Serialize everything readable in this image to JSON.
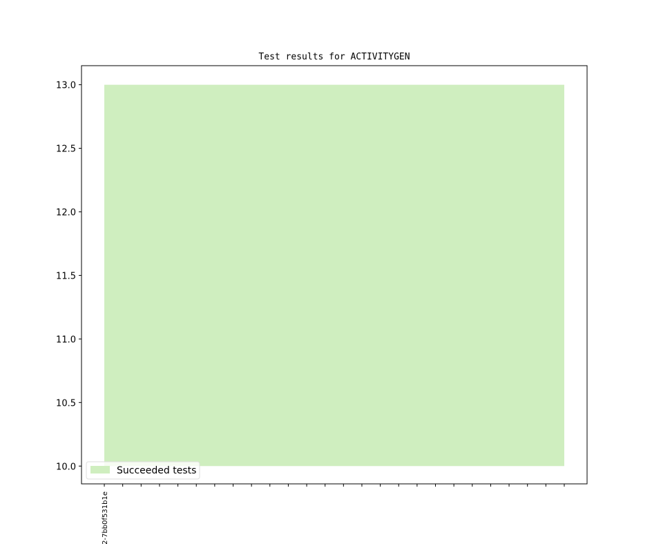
{
  "chart_data": {
    "type": "area",
    "title": "Test results for ACTIVITYGEN",
    "xlabel": "",
    "ylabel": "",
    "x_tick_labels": [
      "2-7bb0f531b1e",
      "",
      "",
      "",
      "",
      "",
      "",
      "",
      "",
      "",
      "",
      "",
      "",
      "",
      "",
      "",
      "",
      "",
      "",
      "",
      "",
      "",
      "",
      "",
      "",
      ""
    ],
    "x": [
      0,
      1,
      2,
      3,
      4,
      5,
      6,
      7,
      8,
      9,
      10,
      11,
      12,
      13,
      14,
      15,
      16,
      17,
      18,
      19,
      20,
      21,
      22,
      23,
      24,
      25
    ],
    "xlim": [
      -1.24,
      26.24
    ],
    "ylim": [
      9.86,
      13.15
    ],
    "y_ticks": [
      10.0,
      10.5,
      11.0,
      11.5,
      12.0,
      12.5,
      13.0
    ],
    "y_tick_labels": [
      "10.0",
      "10.5",
      "11.0",
      "11.5",
      "12.0",
      "12.5",
      "13.0"
    ],
    "baseline": 10.0,
    "series": [
      {
        "name": "Succeeded tests",
        "color": "#cfeebf",
        "values": [
          13,
          13,
          13,
          13,
          13,
          13,
          13,
          13,
          13,
          13,
          13,
          13,
          13,
          13,
          13,
          13,
          13,
          13,
          13,
          13,
          13,
          13,
          13,
          13,
          13,
          13
        ]
      }
    ],
    "grid": false,
    "legend": "lower-left"
  }
}
